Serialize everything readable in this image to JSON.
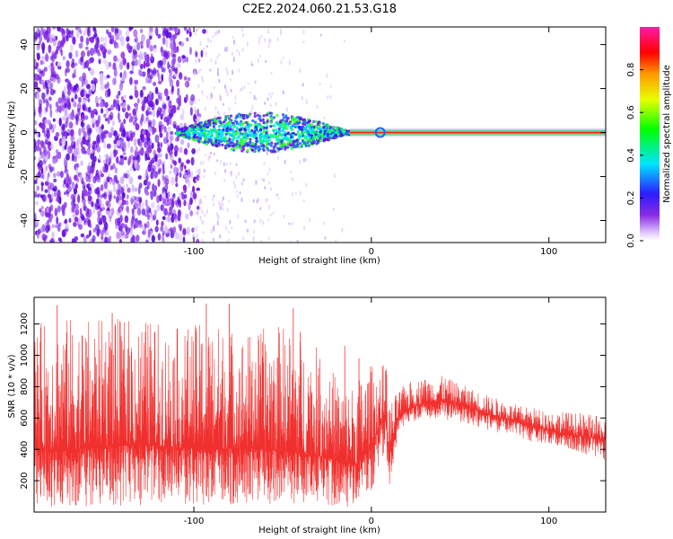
{
  "figure_title": "C2E2.2024.060.21.53.G18",
  "colors": {
    "snr_line": "#f0302e",
    "spectrogram_noise": "#7a1ee8",
    "spectrogram_core": "#ff2020",
    "axis": "#000000"
  },
  "chart_data": [
    {
      "type": "heatmap",
      "title": "",
      "xlabel": "Height of straight line (km)",
      "ylabel": "Frequency (Hz)",
      "xlim": [
        -190,
        132
      ],
      "ylim": [
        -50,
        48
      ],
      "xticks": [
        -100,
        0,
        100
      ],
      "yticks": [
        -40,
        -20,
        0,
        20,
        40
      ],
      "xtick_labels": [
        "-100",
        "0",
        "100"
      ],
      "ytick_labels": [
        "-40",
        "-20",
        "0",
        "20",
        "40"
      ],
      "colorbar": {
        "label": "Normalized spectral amplitude",
        "range": [
          0,
          1
        ],
        "ticks": [
          0.0,
          0.2,
          0.4,
          0.6,
          0.8
        ],
        "tick_labels": [
          "0.0",
          "0.2",
          "0.4",
          "0.6",
          "0.8"
        ],
        "colormap": "rainbow (white-purple-blue-cyan-green-yellow-orange-red-magenta)"
      },
      "features": {
        "noise_region_x": [
          -190,
          -100
        ],
        "sparse_region_x": [
          -100,
          -15
        ],
        "carrier_frequency_hz": 0,
        "carrier_start_x": -110,
        "carrier_spread_hz_max": 8
      },
      "grid": false
    },
    {
      "type": "line",
      "title": "",
      "xlabel": "Height of straight line (km)",
      "ylabel": "SNR (10 * v/v)",
      "xlim": [
        -190,
        132
      ],
      "ylim": [
        0,
        1370
      ],
      "xticks": [
        -100,
        0,
        100
      ],
      "yticks": [
        200,
        400,
        600,
        800,
        1000,
        1200
      ],
      "xtick_labels": [
        "-100",
        "0",
        "100"
      ],
      "ytick_labels": [
        "200",
        "400",
        "600",
        "800",
        "1000",
        "1200"
      ],
      "series": [
        {
          "color": "#f0302e",
          "x": [
            -190,
            -170,
            -150,
            -130,
            -110,
            -90,
            -70,
            -50,
            -30,
            -15,
            -8,
            0,
            5,
            8,
            10,
            15,
            20,
            30,
            40,
            50,
            60,
            70,
            80,
            90,
            100,
            110,
            120,
            132
          ],
          "mean": [
            400,
            400,
            420,
            430,
            410,
            400,
            410,
            390,
            360,
            320,
            300,
            420,
            560,
            600,
            350,
            600,
            650,
            700,
            710,
            690,
            650,
            610,
            580,
            550,
            520,
            500,
            480,
            460
          ],
          "min": [
            40,
            30,
            40,
            40,
            50,
            30,
            60,
            40,
            50,
            20,
            60,
            100,
            300,
            350,
            130,
            480,
            560,
            590,
            590,
            570,
            540,
            510,
            480,
            450,
            430,
            400,
            370,
            320
          ],
          "max": [
            1200,
            1250,
            1230,
            1250,
            1180,
            1220,
            1150,
            1200,
            1050,
            800,
            850,
            950,
            900,
            1000,
            700,
            770,
            830,
            860,
            870,
            820,
            770,
            730,
            690,
            670,
            650,
            640,
            630,
            600
          ],
          "spike_peaks": [
            {
              "x": -177,
              "y": 1320
            },
            {
              "x": -146,
              "y": 1270
            },
            {
              "x": -93,
              "y": 1330
            },
            {
              "x": -80,
              "y": 1330
            },
            {
              "x": -44,
              "y": 1300
            },
            {
              "x": -40,
              "y": 1150
            },
            {
              "x": -15,
              "y": 1060
            },
            {
              "x": -7,
              "y": 980
            },
            {
              "x": 8,
              "y": 900
            }
          ]
        }
      ],
      "grid": false
    }
  ]
}
